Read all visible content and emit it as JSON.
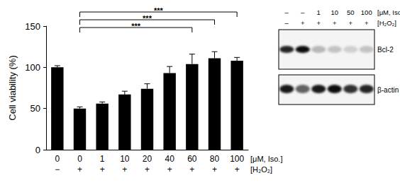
{
  "chart_data": {
    "type": "bar",
    "y_label": "Cell viability (%)",
    "categories": [
      "0",
      "0",
      "1",
      "10",
      "20",
      "40",
      "60",
      "80",
      "100"
    ],
    "treatment": [
      "−",
      "+",
      "+",
      "+",
      "+",
      "+",
      "+",
      "+",
      "+"
    ],
    "row_labels": [
      "[μM, Iso.]",
      "[H₂O₂]"
    ],
    "values": [
      100,
      50,
      56,
      67,
      74,
      93,
      104,
      111,
      108
    ],
    "errors": [
      2,
      2,
      2,
      4,
      6,
      8,
      12,
      8,
      4
    ],
    "color": "#000000",
    "ylim": [
      0,
      150
    ],
    "yticks": [
      0,
      50,
      100,
      150
    ],
    "grid": false,
    "annotations": [
      {
        "from": 1,
        "to": 6,
        "text": "***"
      },
      {
        "from": 1,
        "to": 7,
        "text": "***"
      },
      {
        "from": 1,
        "to": 8,
        "text": "***"
      }
    ]
  },
  "blot": {
    "iso_lanes": [
      "–",
      "–",
      "1",
      "10",
      "50",
      "100"
    ],
    "iso_label": "[μM, Iso.]",
    "h2o2_lanes": [
      "–",
      "+",
      "+",
      "+",
      "+",
      "+"
    ],
    "h2o2_label": "[H₂O₂]",
    "proteins": [
      "Bcl-2",
      "β-actin"
    ]
  }
}
